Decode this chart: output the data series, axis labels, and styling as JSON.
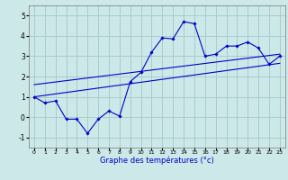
{
  "x_hours": [
    0,
    1,
    2,
    3,
    4,
    5,
    6,
    7,
    8,
    9,
    10,
    11,
    12,
    13,
    14,
    15,
    16,
    17,
    18,
    19,
    20,
    21,
    22,
    23
  ],
  "temp_main": [
    1.0,
    0.7,
    0.8,
    -0.1,
    -0.1,
    -0.8,
    -0.1,
    0.3,
    0.05,
    1.75,
    2.2,
    3.2,
    3.9,
    3.85,
    4.7,
    4.6,
    3.0,
    3.1,
    3.5,
    3.5,
    3.7,
    3.4,
    2.6,
    3.0
  ],
  "trend1_x": [
    0,
    23
  ],
  "trend1_y": [
    1.0,
    2.65
  ],
  "trend2_x": [
    0,
    23
  ],
  "trend2_y": [
    1.6,
    3.1
  ],
  "bg_color": "#cce8e8",
  "grid_color": "#aacccc",
  "line_color": "#0000cc",
  "xlabel": "Graphe des températures (°c)",
  "ylim": [
    -1.5,
    5.5
  ],
  "xlim": [
    -0.5,
    23.5
  ],
  "yticks": [
    -1,
    0,
    1,
    2,
    3,
    4,
    5
  ],
  "xticks": [
    0,
    1,
    2,
    3,
    4,
    5,
    6,
    7,
    8,
    9,
    10,
    11,
    12,
    13,
    14,
    15,
    16,
    17,
    18,
    19,
    20,
    21,
    22,
    23
  ]
}
